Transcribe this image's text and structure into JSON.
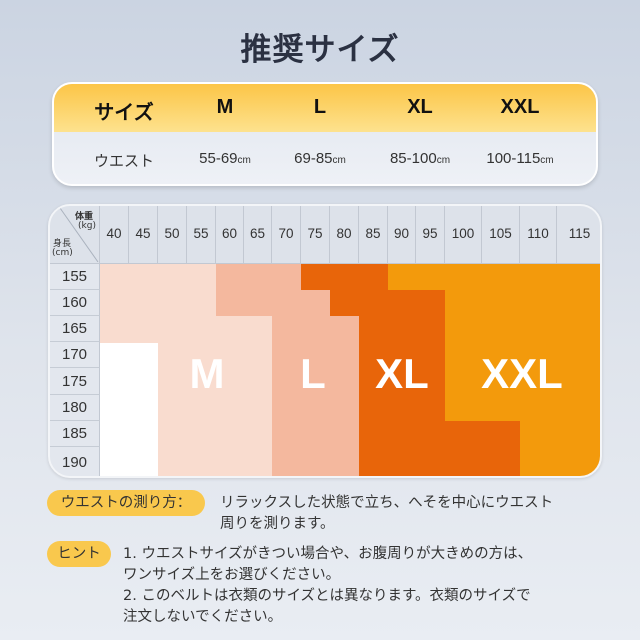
{
  "title": "推奨サイズ",
  "waist_table": {
    "header": [
      "サイズ",
      "M",
      "L",
      "XL",
      "XXL"
    ],
    "row_label": "ウエスト",
    "values": [
      "55-69",
      "69-85",
      "85-100",
      "100-115"
    ],
    "unit": "cm"
  },
  "size_chart": {
    "corner": {
      "weight_label": "体重",
      "weight_unit": "(kg)",
      "height_label": "身長",
      "height_unit": "(cm)"
    },
    "weights": [
      "40",
      "45",
      "50",
      "55",
      "60",
      "65",
      "70",
      "75",
      "80",
      "85",
      "90",
      "95",
      "100",
      "105",
      "110",
      "115"
    ],
    "heights": [
      "155",
      "160",
      "165",
      "170",
      "175",
      "180",
      "185",
      "190"
    ],
    "sizes": [
      {
        "name": "M",
        "color": "#f9dccf"
      },
      {
        "name": "L",
        "color": "#f4b89e"
      },
      {
        "name": "XL",
        "color": "#e8650a"
      },
      {
        "name": "XXL",
        "color": "#f39a0c"
      }
    ],
    "ranges_kg": {
      "155": {
        "M": [
          40,
          55
        ],
        "L": [
          60,
          70
        ],
        "XL": [
          75,
          85
        ],
        "XXL": [
          90,
          115
        ]
      },
      "160": {
        "M": [
          40,
          55
        ],
        "L": [
          60,
          75
        ],
        "XL": [
          80,
          95
        ],
        "XXL": [
          100,
          115
        ]
      },
      "165": {
        "M": [
          40,
          65
        ],
        "L": [
          70,
          80
        ],
        "XL": [
          85,
          95
        ],
        "XXL": [
          100,
          115
        ]
      },
      "170": {
        "M": [
          50,
          65
        ],
        "L": [
          70,
          80
        ],
        "XL": [
          85,
          95
        ],
        "XXL": [
          100,
          115
        ]
      },
      "175": {
        "M": [
          50,
          65
        ],
        "L": [
          70,
          80
        ],
        "XL": [
          85,
          95
        ],
        "XXL": [
          100,
          115
        ]
      },
      "180": {
        "M": [
          50,
          65
        ],
        "L": [
          70,
          80
        ],
        "XL": [
          85,
          95
        ],
        "XXL": [
          100,
          115
        ]
      },
      "185": {
        "M": [
          50,
          65
        ],
        "L": [
          70,
          80
        ],
        "XL": [
          85,
          105
        ],
        "XXL": [
          110,
          115
        ]
      },
      "190": {
        "M": [
          50,
          65
        ],
        "L": [
          70,
          80
        ],
        "XL": [
          85,
          105
        ],
        "XXL": [
          110,
          115
        ]
      }
    }
  },
  "notes": {
    "measure_label": "ウエストの測り方：",
    "measure_lines": [
      "リラックスした状態で立ち、へそを中心にウエスト",
      "周りを測ります。"
    ],
    "hint_label": "ヒント",
    "hint_lines": [
      "1. ウエストサイズがきつい場合や、お腹周りが大きめの方は、",
      "ワンサイズ上をお選びください。",
      "2. このベルトは衣類のサイズとは異なります。衣類のサイズで",
      "注文しないでください。"
    ]
  }
}
